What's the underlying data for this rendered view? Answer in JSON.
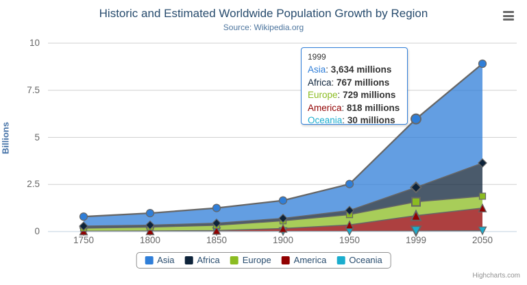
{
  "title": "Historic and Estimated Worldwide Population Growth by Region",
  "subtitle": "Source: Wikipedia.org",
  "credits": "Highcharts.com",
  "colors": {
    "title": "#274b6d",
    "subtitle": "#4d759e",
    "axis_label": "#666666",
    "grid_line": "#d0d0d0",
    "axis_line": "#c0d0e0",
    "series_line": "#666666",
    "legend_border": "#909090",
    "legend_text": "#274b6d",
    "tooltip_border": "#2f7ed8",
    "credits_text": "#909090"
  },
  "chart_data": {
    "type": "area",
    "stacking": "normal",
    "title": "Historic and Estimated Worldwide Population Growth by Region",
    "subtitle": "Source: Wikipedia.org",
    "categories": [
      1750,
      1800,
      1850,
      1900,
      1950,
      1999,
      2050
    ],
    "series": [
      {
        "name": "Asia",
        "color": "#2f7ed8",
        "marker": "circle",
        "values": [
          502,
          635,
          809,
          947,
          1402,
          3634,
          5268
        ]
      },
      {
        "name": "Africa",
        "color": "#0d233a",
        "marker": "diamond",
        "values": [
          106,
          107,
          111,
          133,
          221,
          767,
          1766
        ]
      },
      {
        "name": "Europe",
        "color": "#8bbc21",
        "marker": "square",
        "values": [
          163,
          203,
          276,
          408,
          547,
          729,
          628
        ]
      },
      {
        "name": "America",
        "color": "#910000",
        "marker": "triangle",
        "values": [
          18,
          31,
          54,
          156,
          339,
          818,
          1201
        ]
      },
      {
        "name": "Oceania",
        "color": "#1aadce",
        "marker": "triangle-down",
        "values": [
          2,
          2,
          2,
          6,
          13,
          30,
          46
        ]
      }
    ],
    "unit": "millions",
    "xlabel": "",
    "ylabel": "Billions",
    "yticks": [
      0,
      2.5,
      5,
      7.5,
      10
    ],
    "ylim": [
      0,
      10
    ],
    "value_scale_per_axis_unit": 1000,
    "grid": true,
    "legend_position": "bottom",
    "hover_index": 5,
    "fill_opacity": 0.75
  },
  "tooltip": {
    "header": "1999",
    "rows": [
      {
        "name": "Asia",
        "color": "#2f7ed8",
        "value": "3,634 millions"
      },
      {
        "name": "Africa",
        "color": "#0d233a",
        "value": "767 millions"
      },
      {
        "name": "Europe",
        "color": "#8bbc21",
        "value": "729 millions"
      },
      {
        "name": "America",
        "color": "#910000",
        "value": "818 millions"
      },
      {
        "name": "Oceania",
        "color": "#1aadce",
        "value": "30 millions"
      }
    ]
  }
}
